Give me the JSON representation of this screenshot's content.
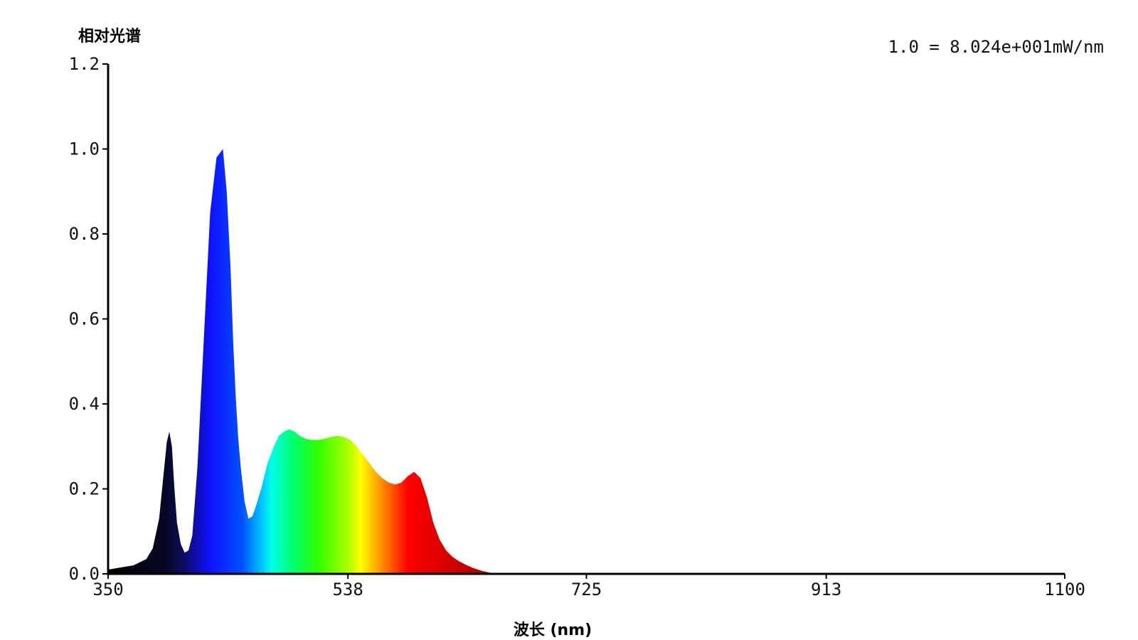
{
  "chart_data": {
    "type": "area",
    "title": "",
    "ylabel": "相对光谱",
    "xlabel": "波长 (nm)",
    "annotation": "1.0 = 8.024e+001mW/nm",
    "xlim": [
      350,
      1100
    ],
    "ylim": [
      0,
      1.2
    ],
    "x_ticks": [
      "350",
      "538",
      "725",
      "913",
      "1100"
    ],
    "x_tick_values": [
      350,
      538,
      725,
      913,
      1100
    ],
    "y_ticks": [
      "0.0",
      "0.2",
      "0.4",
      "0.6",
      "0.8",
      "1.0",
      "1.2"
    ],
    "y_tick_values": [
      0,
      0.2,
      0.4,
      0.6,
      0.8,
      1.0,
      1.2
    ],
    "grid": false,
    "series": [
      {
        "x": [
          350,
          360,
          370,
          380,
          385,
          390,
          393,
          396,
          398,
          400,
          402,
          404,
          407,
          410,
          413,
          416,
          420,
          425,
          430,
          435,
          440,
          443,
          446,
          448,
          450,
          452,
          454,
          457,
          460,
          463,
          466,
          470,
          475,
          480,
          484,
          488,
          492,
          496,
          500,
          505,
          510,
          515,
          520,
          525,
          530,
          535,
          540,
          545,
          550,
          555,
          560,
          565,
          570,
          575,
          580,
          585,
          590,
          595,
          600,
          605,
          610,
          615,
          620,
          625,
          630,
          633,
          636,
          639,
          641,
          643,
          646,
          649,
          652,
          655,
          660,
          670,
          680,
          690,
          700,
          710,
          720,
          740,
          760,
          800,
          850,
          900,
          1000,
          1100
        ],
        "y": [
          0.01,
          0.015,
          0.02,
          0.035,
          0.06,
          0.13,
          0.22,
          0.31,
          0.335,
          0.3,
          0.2,
          0.12,
          0.07,
          0.05,
          0.055,
          0.09,
          0.25,
          0.55,
          0.85,
          0.98,
          1.0,
          0.9,
          0.72,
          0.55,
          0.42,
          0.32,
          0.25,
          0.17,
          0.13,
          0.135,
          0.16,
          0.2,
          0.26,
          0.3,
          0.325,
          0.335,
          0.34,
          0.335,
          0.325,
          0.318,
          0.315,
          0.315,
          0.318,
          0.322,
          0.325,
          0.322,
          0.315,
          0.3,
          0.28,
          0.26,
          0.24,
          0.225,
          0.215,
          0.21,
          0.215,
          0.23,
          0.24,
          0.225,
          0.18,
          0.12,
          0.08,
          0.055,
          0.04,
          0.03,
          0.022,
          0.018,
          0.014,
          0.011,
          0.009,
          0.007,
          0.005,
          0.003,
          0.002,
          0.0015,
          0.001,
          0.0,
          0.0,
          0.0,
          0.0,
          0.0,
          0.0,
          0.0,
          0.0,
          0.0,
          0.0,
          0.0,
          0.0,
          0.0
        ],
        "name": ""
      }
    ],
    "fill_gradient_by_wavelength": [
      {
        "nm": 350,
        "color": "#000000"
      },
      {
        "nm": 395,
        "color": "#070726"
      },
      {
        "nm": 408,
        "color": "#0c0c58"
      },
      {
        "nm": 430,
        "color": "#1010ff"
      },
      {
        "nm": 455,
        "color": "#0050ff"
      },
      {
        "nm": 470,
        "color": "#00c0ff"
      },
      {
        "nm": 478,
        "color": "#00ffe8"
      },
      {
        "nm": 495,
        "color": "#00ff70"
      },
      {
        "nm": 515,
        "color": "#30ff00"
      },
      {
        "nm": 540,
        "color": "#b8ff00"
      },
      {
        "nm": 548,
        "color": "#ffff00"
      },
      {
        "nm": 562,
        "color": "#ffa000"
      },
      {
        "nm": 585,
        "color": "#ff0000"
      },
      {
        "nm": 620,
        "color": "#d00000"
      },
      {
        "nm": 680,
        "color": "#800000"
      },
      {
        "nm": 760,
        "color": "#300000"
      }
    ]
  }
}
